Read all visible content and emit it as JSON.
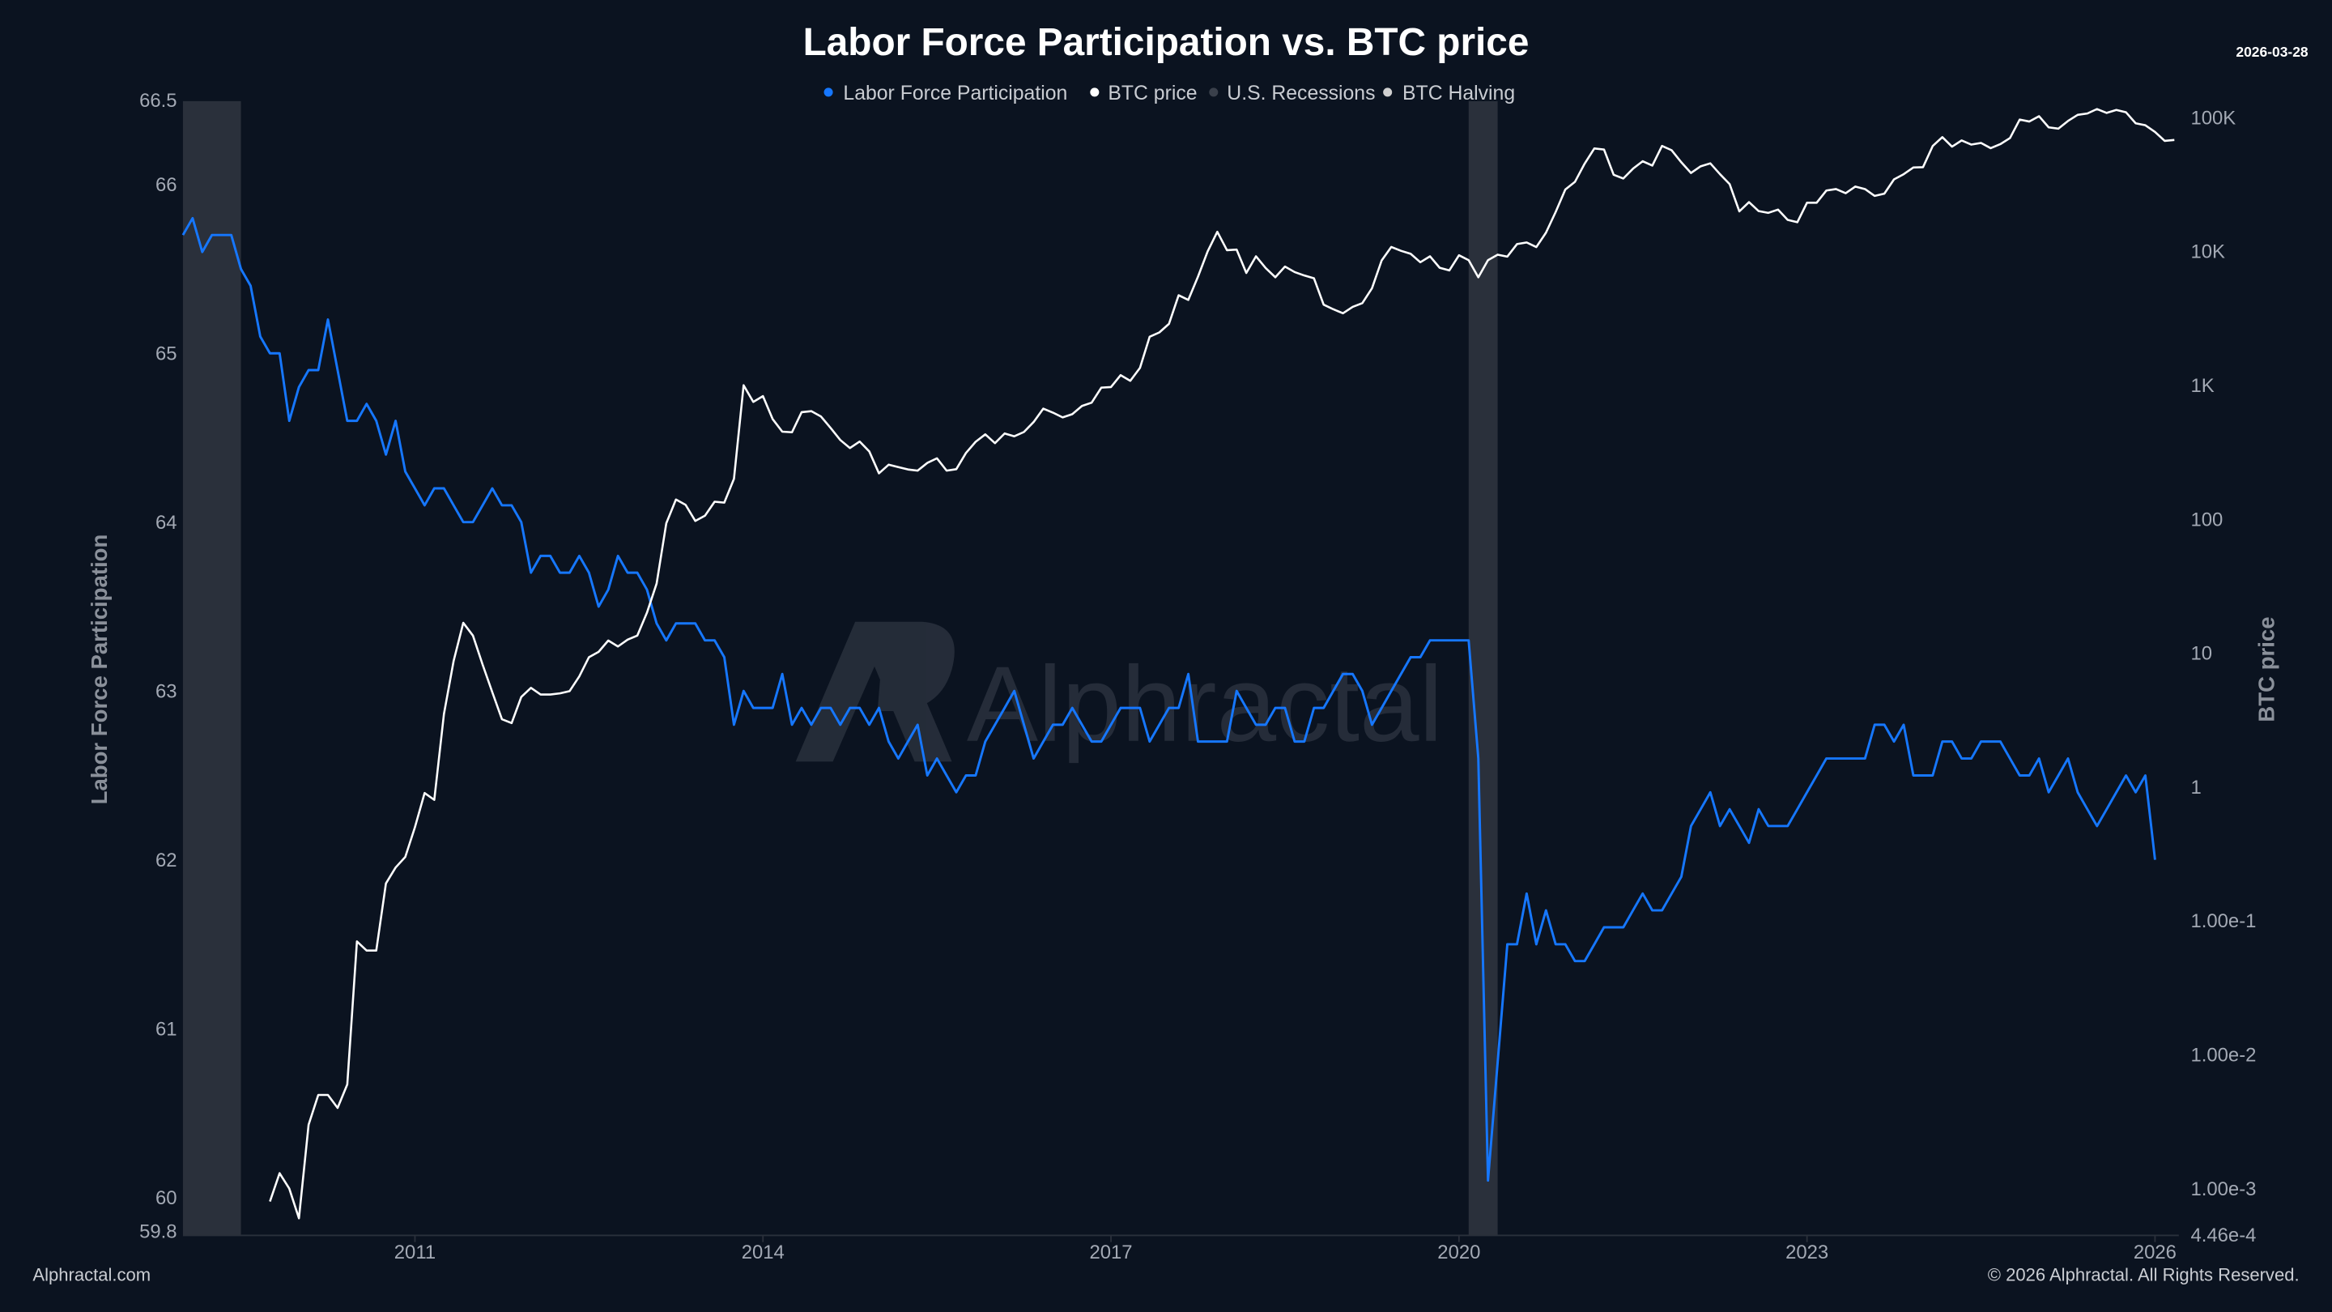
{
  "title": "Labor Force Participation vs. BTC price",
  "date_stamp": "2026-03-28",
  "footer": {
    "left": "Alphractal.com",
    "right": "© 2026 Alphractal. All Rights Reserved."
  },
  "watermark": "Alphractal",
  "colors": {
    "background": "#0b1320",
    "labor": "#1677ff",
    "btc": "#ffffff",
    "recession": "#2a303b",
    "halving": "#d0d0d0"
  },
  "chart_data": {
    "type": "line",
    "title": "Labor Force Participation vs. BTC price",
    "legend": {
      "placement": "top-center",
      "entries": [
        "Labor Force Participation",
        "BTC price",
        "U.S. Recessions",
        "BTC Halving"
      ]
    },
    "grid": false,
    "x_axis": {
      "type": "date",
      "range": [
        "2009-01",
        "2026-03"
      ],
      "ticks": [
        "2011",
        "2014",
        "2017",
        "2020",
        "2023",
        "2026"
      ]
    },
    "y_left": {
      "label": "Labor Force Participation",
      "range": [
        59.8,
        66.5
      ],
      "ticks": [
        "66.5",
        "66",
        "65",
        "64",
        "63",
        "62",
        "61",
        "60",
        "59.8"
      ]
    },
    "y_right": {
      "label": "BTC price",
      "scale": "log",
      "range": [
        0.000446,
        200000
      ],
      "ticks": [
        "100K",
        "10K",
        "1K",
        "100",
        "10",
        "1",
        "1.00e-1",
        "1.00e-2",
        "1.00e-3",
        "4.46e-4"
      ]
    },
    "recessions": [
      [
        "2009-01",
        "2009-06"
      ],
      [
        "2020-02",
        "2020-04"
      ]
    ],
    "series": [
      {
        "name": "Labor Force Participation",
        "axis": "left",
        "start": "2009-01",
        "frequency": "monthly",
        "values": [
          65.7,
          65.8,
          65.6,
          65.7,
          65.7,
          65.7,
          65.5,
          65.4,
          65.1,
          65.0,
          65.0,
          64.6,
          64.8,
          64.9,
          64.9,
          65.2,
          64.9,
          64.6,
          64.6,
          64.7,
          64.6,
          64.4,
          64.6,
          64.3,
          64.2,
          64.1,
          64.2,
          64.2,
          64.1,
          64.0,
          64.0,
          64.1,
          64.2,
          64.1,
          64.1,
          64.0,
          63.7,
          63.8,
          63.8,
          63.7,
          63.7,
          63.8,
          63.7,
          63.5,
          63.6,
          63.8,
          63.7,
          63.7,
          63.6,
          63.4,
          63.3,
          63.4,
          63.4,
          63.4,
          63.3,
          63.3,
          63.2,
          62.8,
          63.0,
          62.9,
          62.9,
          62.9,
          63.1,
          62.8,
          62.9,
          62.8,
          62.9,
          62.9,
          62.8,
          62.9,
          62.9,
          62.8,
          62.9,
          62.7,
          62.6,
          62.7,
          62.8,
          62.5,
          62.6,
          62.5,
          62.4,
          62.5,
          62.5,
          62.7,
          62.8,
          62.9,
          63.0,
          62.8,
          62.6,
          62.7,
          62.8,
          62.8,
          62.9,
          62.8,
          62.7,
          62.7,
          62.8,
          62.9,
          62.9,
          62.9,
          62.7,
          62.8,
          62.9,
          62.9,
          63.1,
          62.7,
          62.7,
          62.7,
          62.7,
          63.0,
          62.9,
          62.8,
          62.8,
          62.9,
          62.9,
          62.7,
          62.7,
          62.9,
          62.9,
          63.0,
          63.1,
          63.1,
          63.0,
          62.8,
          62.9,
          63.0,
          63.1,
          63.2,
          63.2,
          63.3,
          63.3,
          63.3,
          63.3,
          63.3,
          62.6,
          60.1,
          60.8,
          61.5,
          61.5,
          61.8,
          61.5,
          61.7,
          61.5,
          61.5,
          61.4,
          61.4,
          61.5,
          61.6,
          61.6,
          61.6,
          61.7,
          61.8,
          61.7,
          61.7,
          61.8,
          61.9,
          62.2,
          62.3,
          62.4,
          62.2,
          62.3,
          62.2,
          62.1,
          62.3,
          62.2,
          62.2,
          62.2,
          62.3,
          62.4,
          62.5,
          62.6,
          62.6,
          62.6,
          62.6,
          62.6,
          62.8,
          62.8,
          62.7,
          62.8,
          62.5,
          62.5,
          62.5,
          62.7,
          62.7,
          62.6,
          62.6,
          62.7,
          62.7,
          62.7,
          62.6,
          62.5,
          62.5,
          62.6,
          62.4,
          62.5,
          62.6,
          62.4,
          62.3,
          62.2,
          62.3,
          62.4,
          62.5,
          62.4,
          62.5,
          62.0
        ]
      },
      {
        "name": "BTC price",
        "axis": "right",
        "start": "2009-10",
        "frequency": "monthly",
        "values": [
          0.0008,
          0.0013,
          0.001,
          0.0006,
          0.003,
          0.005,
          0.005,
          0.004,
          0.006,
          0.07,
          0.06,
          0.06,
          0.19,
          0.25,
          0.3,
          0.5,
          0.9,
          0.8,
          3.5,
          8.7,
          16.8,
          13.5,
          8.2,
          5.1,
          3.2,
          3.0,
          4.7,
          5.5,
          4.9,
          4.9,
          5.0,
          5.2,
          6.7,
          9.3,
          10.2,
          12.4,
          11.2,
          12.6,
          13.5,
          20,
          33,
          93,
          140,
          128,
          97,
          106,
          135,
          133,
          200,
          1000,
          750,
          830,
          560,
          450,
          445,
          630,
          640,
          585,
          480,
          390,
          340,
          380,
          320,
          220,
          255,
          245,
          235,
          230,
          263,
          285,
          230,
          236,
          312,
          378,
          430,
          370,
          437,
          416,
          448,
          531,
          670,
          624,
          575,
          609,
          700,
          742,
          960,
          970,
          1190,
          1080,
          1350,
          2300,
          2480,
          2875,
          4700,
          4340,
          6470,
          10000,
          14000,
          10200,
          10300,
          6900,
          9200,
          7500,
          6400,
          7700,
          7000,
          6600,
          6300,
          4000,
          3700,
          3450,
          3850,
          4100,
          5300,
          8550,
          10800,
          10100,
          9600,
          8300,
          9200,
          7550,
          7200,
          9350,
          8600,
          6400,
          8600,
          9450,
          9140,
          11350,
          11650,
          10780,
          13800,
          19700,
          29000,
          33100,
          45200,
          58800,
          57700,
          37300,
          35000,
          41500,
          47100,
          43800,
          61300,
          57000,
          46300,
          38500,
          43200,
          45500,
          37700,
          31800,
          19900,
          23300,
          20000,
          19400,
          20500,
          17200,
          16500,
          23100,
          23100,
          28500,
          29200,
          27200,
          30500,
          29200,
          26000,
          27000,
          34500,
          37700,
          42300,
          42600,
          61200,
          71300,
          60600,
          67500,
          62700,
          64600,
          59000,
          63300,
          70200,
          96400,
          93400,
          102400,
          84400,
          82500,
          94200,
          104600,
          107100,
          115700,
          108200,
          114000,
          109500,
          90400,
          87500,
          78000,
          67000,
          68000
        ]
      }
    ]
  }
}
